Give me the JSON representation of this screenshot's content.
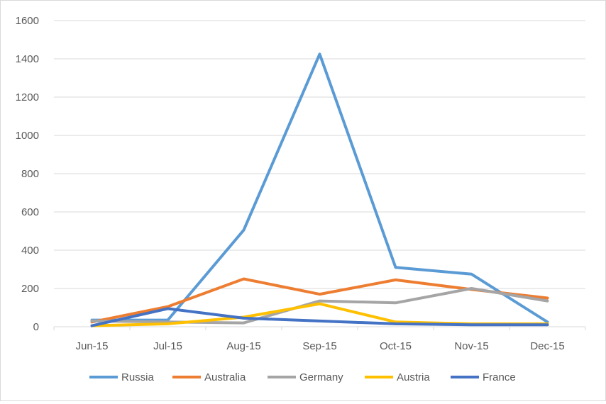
{
  "chart_data": {
    "type": "line",
    "title": "",
    "xlabel": "",
    "ylabel": "",
    "categories": [
      "Jun-15",
      "Jul-15",
      "Aug-15",
      "Sep-15",
      "Oct-15",
      "Nov-15",
      "Dec-15"
    ],
    "ylim": [
      0,
      1600
    ],
    "yticks": [
      "0",
      "200",
      "400",
      "600",
      "800",
      "1000",
      "1200",
      "1400",
      "1600"
    ],
    "grid": true,
    "legend_position": "bottom",
    "series": [
      {
        "name": "Russia",
        "color": "#5B9BD5",
        "values": [
          35,
          35,
          505,
          1425,
          310,
          275,
          25
        ]
      },
      {
        "name": "Australia",
        "color": "#ED7D31",
        "values": [
          25,
          105,
          250,
          170,
          245,
          195,
          150
        ]
      },
      {
        "name": "Germany",
        "color": "#A5A5A5",
        "values": [
          30,
          25,
          20,
          135,
          125,
          200,
          135
        ]
      },
      {
        "name": "Austria",
        "color": "#FFC000",
        "values": [
          5,
          15,
          50,
          120,
          25,
          15,
          15
        ]
      },
      {
        "name": "France",
        "color": "#4472C4",
        "values": [
          5,
          95,
          45,
          30,
          15,
          10,
          10
        ]
      }
    ]
  }
}
